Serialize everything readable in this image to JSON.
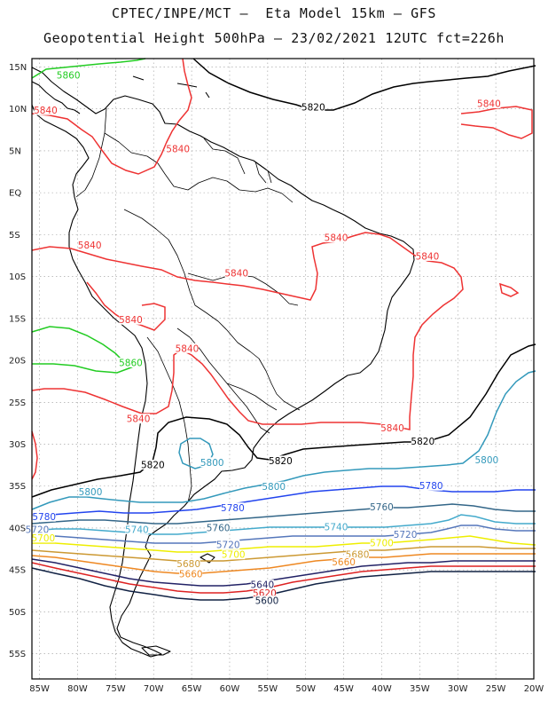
{
  "title_line1": "CPTEC/INPE/MCT –  Eta Model 15km – GFS",
  "title_line2": "Geopotential Height 500hPa – 23/02/2021 12UTC fct=226h",
  "lat_ticks": [
    "15N",
    "10N",
    "5N",
    "EQ",
    "5S",
    "10S",
    "15S",
    "20S",
    "25S",
    "30S",
    "35S",
    "40S",
    "45S",
    "50S",
    "55S"
  ],
  "lon_ticks": [
    "85W",
    "80W",
    "75W",
    "70W",
    "65W",
    "60W",
    "55W",
    "50W",
    "45W",
    "40W",
    "35W",
    "30W",
    "25W",
    "20W"
  ],
  "map_extent": {
    "lon_min": -86,
    "lon_max": -20,
    "lat_min": -58,
    "lat_max": 16
  },
  "grid": true,
  "contour_colors": {
    "5860": "#22cc22",
    "5840": "#ee3333",
    "5820": "#000000",
    "5800": "#3399bb",
    "5780": "#2244ee",
    "5760": "#336688",
    "5740": "#44aacc",
    "5720": "#5577bb",
    "5700": "#eeee00",
    "5680": "#cc9933",
    "5660": "#ee8822",
    "5640": "#222266",
    "5620": "#dd2222",
    "5600": "#112244"
  },
  "contour_labels": [
    {
      "text": "5860",
      "color": "5860",
      "lon": -81.2,
      "lat": 14.0
    },
    {
      "text": "5840",
      "color": "5840",
      "lon": -84.2,
      "lat": 9.8
    },
    {
      "text": "5820",
      "color": "5820",
      "lon": -49.0,
      "lat": 10.2
    },
    {
      "text": "5840",
      "color": "5840",
      "lon": -25.9,
      "lat": 10.6
    },
    {
      "text": "5840",
      "color": "5840",
      "lon": -66.8,
      "lat": 5.2
    },
    {
      "text": "5840",
      "color": "5840",
      "lon": -46.0,
      "lat": -5.4
    },
    {
      "text": "5840",
      "color": "5840",
      "lon": -78.4,
      "lat": -6.3
    },
    {
      "text": "5840",
      "color": "5840",
      "lon": -34.0,
      "lat": -7.6
    },
    {
      "text": "5840",
      "color": "5840",
      "lon": -59.1,
      "lat": -9.6
    },
    {
      "text": "5840",
      "color": "5840",
      "lon": -73.0,
      "lat": -15.2
    },
    {
      "text": "5840",
      "color": "5840",
      "lon": -65.6,
      "lat": -18.6
    },
    {
      "text": "5860",
      "color": "5860",
      "lon": -73.0,
      "lat": -20.3
    },
    {
      "text": "5840",
      "color": "5840",
      "lon": -72.0,
      "lat": -27.0
    },
    {
      "text": "5840",
      "color": "5840",
      "lon": -38.6,
      "lat": -28.1
    },
    {
      "text": "5820",
      "color": "5820",
      "lon": -34.6,
      "lat": -29.7
    },
    {
      "text": "5820",
      "color": "5820",
      "lon": -70.1,
      "lat": -32.5
    },
    {
      "text": "5800",
      "color": "5800",
      "lon": -62.3,
      "lat": -32.2
    },
    {
      "text": "5820",
      "color": "5820",
      "lon": -53.3,
      "lat": -32.0
    },
    {
      "text": "5800",
      "color": "5800",
      "lon": -26.2,
      "lat": -31.9
    },
    {
      "text": "5800",
      "color": "5800",
      "lon": -78.3,
      "lat": -35.7
    },
    {
      "text": "5800",
      "color": "5800",
      "lon": -54.2,
      "lat": -35.1
    },
    {
      "text": "5780",
      "color": "5780",
      "lon": -33.5,
      "lat": -35.0
    },
    {
      "text": "5780",
      "color": "5780",
      "lon": -84.4,
      "lat": -38.7
    },
    {
      "text": "5780",
      "color": "5780",
      "lon": -59.6,
      "lat": -37.6
    },
    {
      "text": "5760",
      "color": "5760",
      "lon": -40.0,
      "lat": -37.5
    },
    {
      "text": "5720",
      "color": "5720",
      "lon": -85.3,
      "lat": -40.2
    },
    {
      "text": "5740",
      "color": "5740",
      "lon": -72.2,
      "lat": -40.2
    },
    {
      "text": "5760",
      "color": "5760",
      "lon": -61.5,
      "lat": -40.0
    },
    {
      "text": "5740",
      "color": "5740",
      "lon": -46.0,
      "lat": -39.9
    },
    {
      "text": "5720",
      "color": "5720",
      "lon": -36.9,
      "lat": -40.8
    },
    {
      "text": "5700",
      "color": "5700",
      "lon": -84.5,
      "lat": -41.2
    },
    {
      "text": "5720",
      "color": "5720",
      "lon": -60.2,
      "lat": -42.0
    },
    {
      "text": "5700",
      "color": "5700",
      "lon": -59.5,
      "lat": -43.2
    },
    {
      "text": "5700",
      "color": "5700",
      "lon": -40.0,
      "lat": -41.8
    },
    {
      "text": "5680",
      "color": "5680",
      "lon": -43.2,
      "lat": -43.2
    },
    {
      "text": "5660",
      "color": "5660",
      "lon": -45.0,
      "lat": -44.1
    },
    {
      "text": "5680",
      "color": "5680",
      "lon": -65.4,
      "lat": -44.3
    },
    {
      "text": "5660",
      "color": "5660",
      "lon": -65.1,
      "lat": -45.5
    },
    {
      "text": "5640",
      "color": "5640",
      "lon": -55.7,
      "lat": -46.8
    },
    {
      "text": "5620",
      "color": "5620",
      "lon": -55.4,
      "lat": -47.8
    },
    {
      "text": "5600",
      "color": "5600",
      "lon": -55.1,
      "lat": -48.7
    }
  ]
}
